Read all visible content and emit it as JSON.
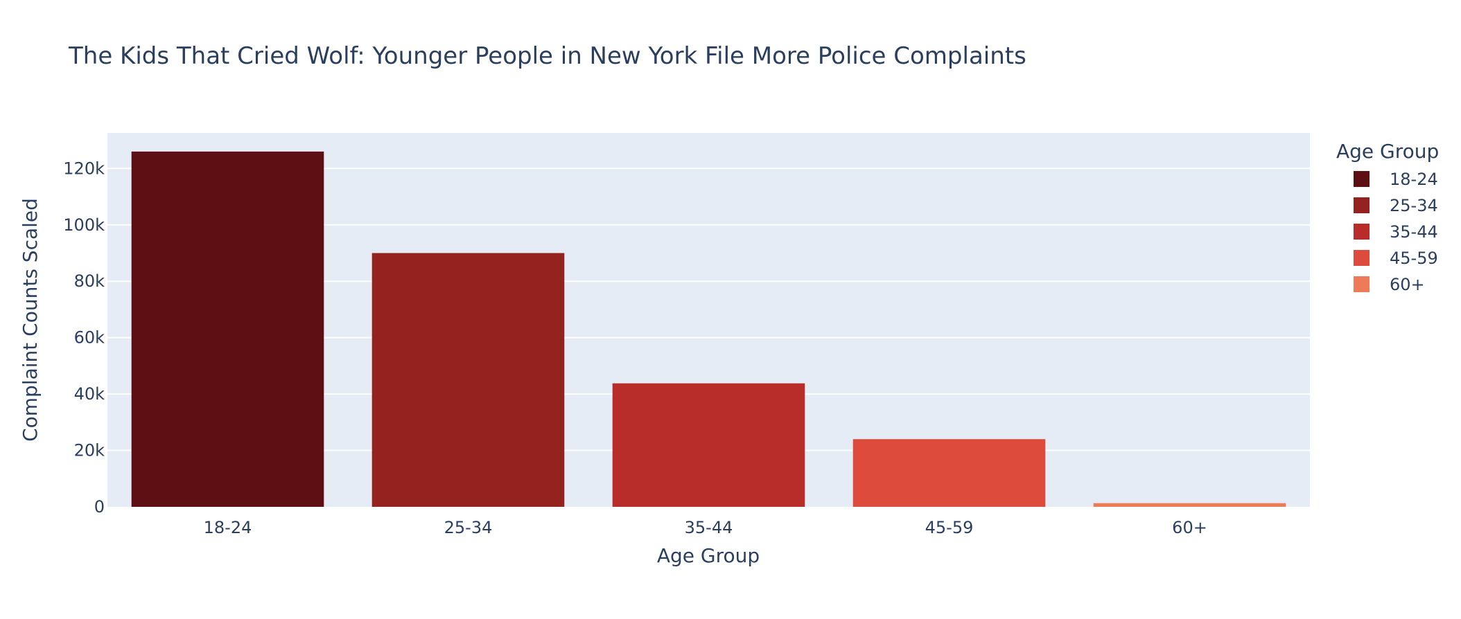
{
  "chart_data": {
    "type": "bar",
    "title": "The Kids That Cried Wolf: Younger People in New York File More Police Complaints",
    "xlabel": "Age Group",
    "ylabel": "Complaint Counts Scaled",
    "categories": [
      "18-24",
      "25-34",
      "35-44",
      "45-59",
      "60+"
    ],
    "values": [
      126000,
      90000,
      43800,
      24000,
      1300
    ],
    "colors": [
      "#5e0f14",
      "#94221f",
      "#b82d2a",
      "#dc4b3b",
      "#ee7b58"
    ],
    "ylim": [
      0,
      132600
    ],
    "yticks": [
      0,
      20000,
      40000,
      60000,
      80000,
      100000,
      120000
    ],
    "ytick_labels": [
      "0",
      "20k",
      "40k",
      "60k",
      "80k",
      "100k",
      "120k"
    ],
    "grid": true,
    "plot_background": "#e5ecf6",
    "legend": {
      "title": "Age Group",
      "placement": "right",
      "entries": [
        "18-24",
        "25-34",
        "35-44",
        "45-59",
        "60+"
      ]
    }
  }
}
